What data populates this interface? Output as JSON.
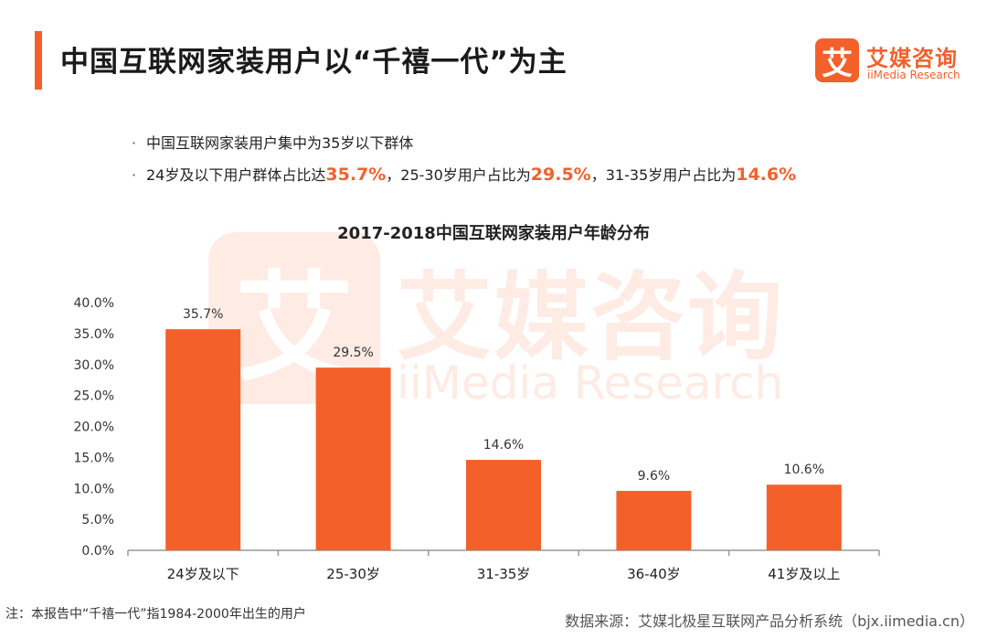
{
  "page": {
    "title": "中国互联网家装用户以“千禧一代”为主"
  },
  "logo": {
    "mark": "艾",
    "cn": "艾媒咨询",
    "en": "iiMedia Research"
  },
  "bullets": {
    "b1": "中国互联网家装用户集中为35岁以下群体",
    "b2_p1": "24岁及以下用户群体占比达",
    "b2_v1": "35.7%",
    "b2_p2": "，25-30岁用户占比为",
    "b2_v2": "29.5%",
    "b2_p3": "，31-35岁用户占比为",
    "b2_v3": "14.6%",
    "marker": "·"
  },
  "colors": {
    "accent": "#f4602a",
    "bar": "#f4602a",
    "axis": "#999999"
  },
  "chart_data": {
    "type": "bar",
    "title": "2017-2018中国互联网家装用户年龄分布",
    "categories": [
      "24岁及以下",
      "25-30岁",
      "31-35岁",
      "36-40岁",
      "41岁及以上"
    ],
    "values": [
      35.7,
      29.5,
      14.6,
      9.6,
      10.6
    ],
    "value_labels": [
      "35.7%",
      "29.5%",
      "14.6%",
      "9.6%",
      "10.6%"
    ],
    "yticks": [
      "0.0%",
      "5.0%",
      "10.0%",
      "15.0%",
      "20.0%",
      "25.0%",
      "30.0%",
      "35.0%",
      "40.0%"
    ],
    "ylim": [
      0,
      40
    ],
    "xlabel": "",
    "ylabel": "",
    "grid": false
  },
  "footer": {
    "note": "注：本报告中“千禧一代”指1984-2000年出生的用户",
    "source": "数据来源：艾媒北极星互联网产品分析系统（bjx.iimedia.cn）"
  }
}
